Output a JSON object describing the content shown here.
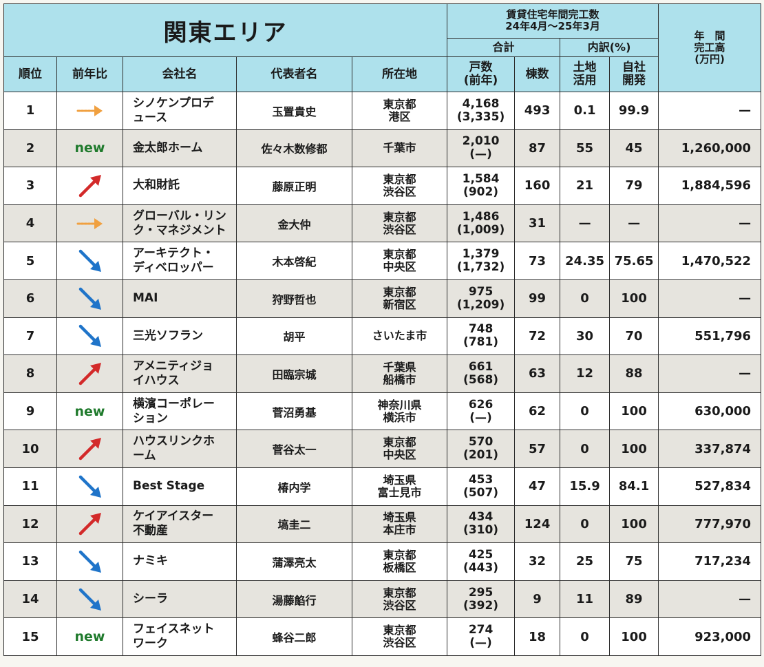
{
  "header": {
    "area_title": "関東エリア",
    "completions_title_line1": "賃貸住宅年間完工数",
    "completions_title_line2": "24年4月〜25年3月",
    "total_label": "合計",
    "breakdown_label": "内訳(%)",
    "annual_line1": "年　間",
    "annual_line2": "完工高",
    "annual_line3": "(万円)",
    "columns": {
      "rank": "順位",
      "yoy": "前年比",
      "company": "会社名",
      "representative": "代表者名",
      "location": "所在地",
      "units_line1": "戸数",
      "units_line2": "(前年)",
      "buildings": "棟数",
      "land_line1": "土地",
      "land_line2": "活用",
      "own_line1": "自社",
      "own_line2": "開発"
    }
  },
  "colors": {
    "header_bg": "#aee1ec",
    "row_even_bg": "#e6e4de",
    "arrow_up": "#d32a2a",
    "arrow_down": "#1f74c9",
    "arrow_same": "#f0a040",
    "new_text": "#1f7a2c"
  },
  "rows": [
    {
      "rank": "1",
      "trend": "same",
      "trend_text": "",
      "company_line1": "シノケンプロデ",
      "company_line2": "ュース",
      "representative": "玉置貴史",
      "location_line1": "東京都",
      "location_line2": "港区",
      "units": "4,168",
      "units_prev": "(3,335)",
      "buildings": "493",
      "land": "0.1",
      "own": "99.9",
      "annual": "—"
    },
    {
      "rank": "2",
      "trend": "new",
      "trend_text": "new",
      "company_line1": "金太郎ホーム",
      "company_line2": "",
      "representative": "佐々木数修都",
      "location_line1": "千葉市",
      "location_line2": "",
      "units": "2,010",
      "units_prev": "(—)",
      "buildings": "87",
      "land": "55",
      "own": "45",
      "annual": "1,260,000"
    },
    {
      "rank": "3",
      "trend": "up",
      "trend_text": "",
      "company_line1": "大和財託",
      "company_line2": "",
      "representative": "藤原正明",
      "location_line1": "東京都",
      "location_line2": "渋谷区",
      "units": "1,584",
      "units_prev": "(902)",
      "buildings": "160",
      "land": "21",
      "own": "79",
      "annual": "1,884,596"
    },
    {
      "rank": "4",
      "trend": "same",
      "trend_text": "",
      "company_line1": "グローバル・リン",
      "company_line2": "ク・マネジメント",
      "representative": "金大仲",
      "location_line1": "東京都",
      "location_line2": "渋谷区",
      "units": "1,486",
      "units_prev": "(1,009)",
      "buildings": "31",
      "land": "—",
      "own": "—",
      "annual": "—"
    },
    {
      "rank": "5",
      "trend": "down",
      "trend_text": "",
      "company_line1": "アーキテクト・",
      "company_line2": "ディベロッパー",
      "representative": "木本啓紀",
      "location_line1": "東京都",
      "location_line2": "中央区",
      "units": "1,379",
      "units_prev": "(1,732)",
      "buildings": "73",
      "land": "24.35",
      "own": "75.65",
      "annual": "1,470,522"
    },
    {
      "rank": "6",
      "trend": "down",
      "trend_text": "",
      "company_line1": "MAI",
      "company_line2": "",
      "representative": "狩野哲也",
      "location_line1": "東京都",
      "location_line2": "新宿区",
      "units": "975",
      "units_prev": "(1,209)",
      "buildings": "99",
      "land": "0",
      "own": "100",
      "annual": "—"
    },
    {
      "rank": "7",
      "trend": "down",
      "trend_text": "",
      "company_line1": "三光ソフラン",
      "company_line2": "",
      "representative": "胡平",
      "location_line1": "さいたま市",
      "location_line2": "",
      "units": "748",
      "units_prev": "(781)",
      "buildings": "72",
      "land": "30",
      "own": "70",
      "annual": "551,796"
    },
    {
      "rank": "8",
      "trend": "up",
      "trend_text": "",
      "company_line1": "アメニティジョ",
      "company_line2": "イハウス",
      "representative": "田臨宗城",
      "location_line1": "千葉県",
      "location_line2": "船橋市",
      "units": "661",
      "units_prev": "(568)",
      "buildings": "63",
      "land": "12",
      "own": "88",
      "annual": "—"
    },
    {
      "rank": "9",
      "trend": "new",
      "trend_text": "new",
      "company_line1": "横濱コーポレー",
      "company_line2": "ション",
      "representative": "菅沼勇基",
      "location_line1": "神奈川県",
      "location_line2": "横浜市",
      "units": "626",
      "units_prev": "(—)",
      "buildings": "62",
      "land": "0",
      "own": "100",
      "annual": "630,000"
    },
    {
      "rank": "10",
      "trend": "up",
      "trend_text": "",
      "company_line1": "ハウスリンクホ",
      "company_line2": "ーム",
      "representative": "菅谷太一",
      "location_line1": "東京都",
      "location_line2": "中央区",
      "units": "570",
      "units_prev": "(201)",
      "buildings": "57",
      "land": "0",
      "own": "100",
      "annual": "337,874"
    },
    {
      "rank": "11",
      "trend": "down",
      "trend_text": "",
      "company_line1": "Best Stage",
      "company_line2": "",
      "representative": "椿内学",
      "location_line1": "埼玉県",
      "location_line2": "富士見市",
      "units": "453",
      "units_prev": "(507)",
      "buildings": "47",
      "land": "15.9",
      "own": "84.1",
      "annual": "527,834"
    },
    {
      "rank": "12",
      "trend": "up",
      "trend_text": "",
      "company_line1": "ケイアイスター",
      "company_line2": "不動産",
      "representative": "塙圭二",
      "location_line1": "埼玉県",
      "location_line2": "本庄市",
      "units": "434",
      "units_prev": "(310)",
      "buildings": "124",
      "land": "0",
      "own": "100",
      "annual": "777,970"
    },
    {
      "rank": "13",
      "trend": "down",
      "trend_text": "",
      "company_line1": "ナミキ",
      "company_line2": "",
      "representative": "蒲澤亮太",
      "location_line1": "東京都",
      "location_line2": "板橋区",
      "units": "425",
      "units_prev": "(443)",
      "buildings": "32",
      "land": "25",
      "own": "75",
      "annual": "717,234"
    },
    {
      "rank": "14",
      "trend": "down",
      "trend_text": "",
      "company_line1": "シーラ",
      "company_line2": "",
      "representative": "湯藤餡行",
      "location_line1": "東京都",
      "location_line2": "渋谷区",
      "units": "295",
      "units_prev": "(392)",
      "buildings": "9",
      "land": "11",
      "own": "89",
      "annual": "—"
    },
    {
      "rank": "15",
      "trend": "new",
      "trend_text": "new",
      "company_line1": "フェイスネット",
      "company_line2": "ワーク",
      "representative": "蜂谷二郎",
      "location_line1": "東京都",
      "location_line2": "渋谷区",
      "units": "274",
      "units_prev": "(—)",
      "buildings": "18",
      "land": "0",
      "own": "100",
      "annual": "923,000"
    }
  ]
}
